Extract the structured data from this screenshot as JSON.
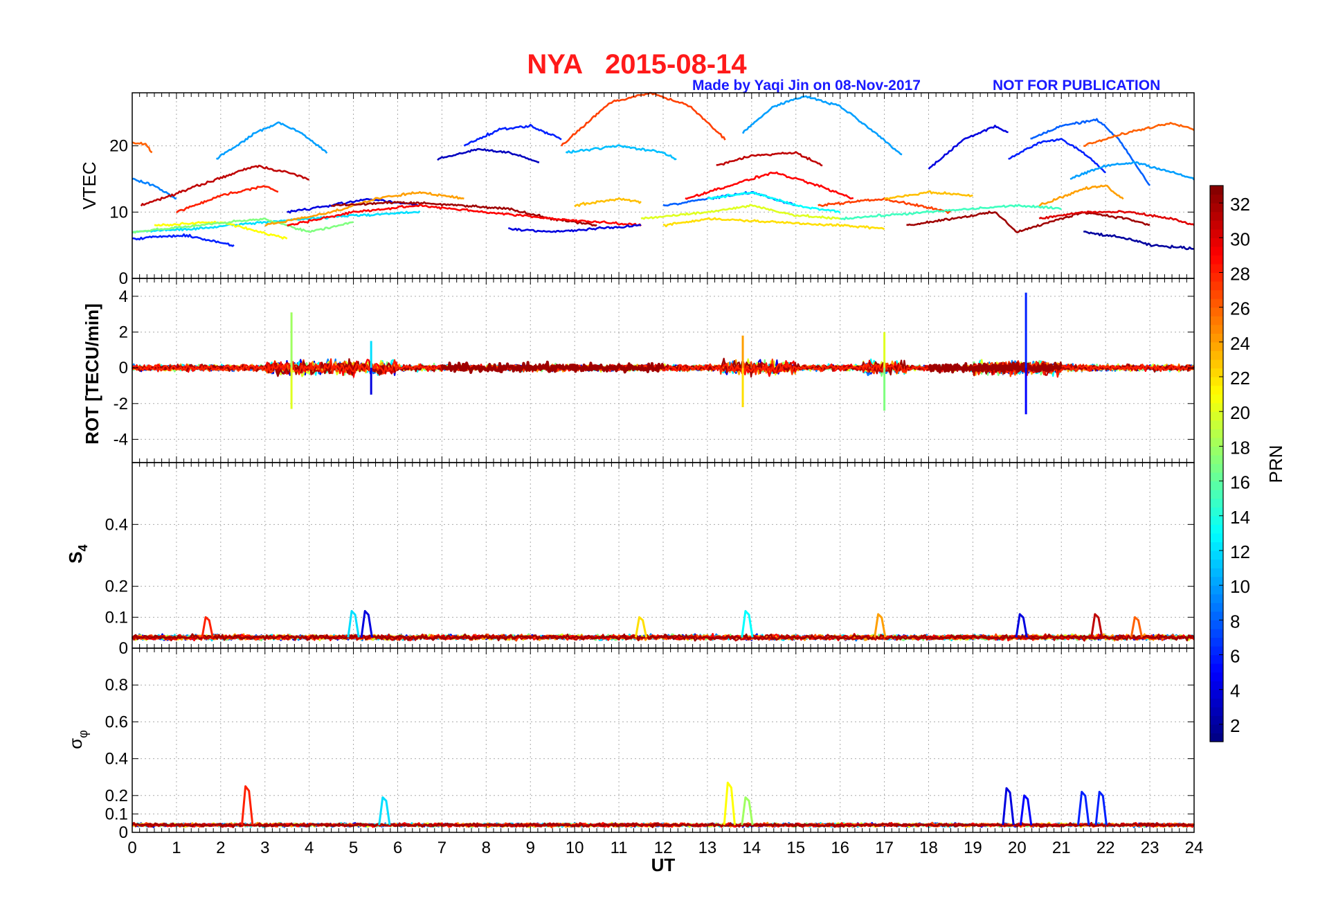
{
  "header": {
    "title": "NYA   2015-08-14",
    "credit": "Made by Yaqi Jin on 08-Nov-2017",
    "notice": "NOT FOR PUBLICATION",
    "title_color": "#ff1a1a",
    "credit_color": "#1a1aff"
  },
  "chart_data": [
    {
      "type": "line",
      "panel": "vtec",
      "ylabel": "VTEC",
      "xlim": [
        0,
        24
      ],
      "ylim": [
        0,
        28
      ],
      "yticks": [
        0,
        10,
        20
      ],
      "grid": true,
      "series": [
        {
          "prn": 9,
          "x": [
            0,
            0.5,
            1.0
          ],
          "y": [
            15,
            14,
            12
          ]
        },
        {
          "prn": 26,
          "x": [
            0,
            0.3,
            0.45
          ],
          "y": [
            20.5,
            20.2,
            19
          ]
        },
        {
          "prn": 31,
          "x": [
            0.2,
            1.5,
            2.8,
            3.5,
            4.0
          ],
          "y": [
            11,
            14,
            17,
            16,
            15
          ]
        },
        {
          "prn": 28,
          "x": [
            1.0,
            2.0,
            3.0,
            3.3
          ],
          "y": [
            10,
            12.5,
            14,
            13
          ]
        },
        {
          "prn": 10,
          "x": [
            1.9,
            2.8,
            3.3,
            3.8,
            4.4
          ],
          "y": [
            18,
            22,
            23.5,
            22,
            19
          ]
        },
        {
          "prn": 6,
          "x": [
            0,
            1.2,
            2.3
          ],
          "y": [
            6,
            6.5,
            5
          ]
        },
        {
          "prn": 12,
          "x": [
            0,
            1.5,
            3.0,
            4.0,
            5.0,
            6.5
          ],
          "y": [
            7,
            7.5,
            8.5,
            9,
            9.5,
            10
          ]
        },
        {
          "prn": 21,
          "x": [
            0.5,
            2.0,
            3.5
          ],
          "y": [
            8,
            8.5,
            6
          ]
        },
        {
          "prn": 17,
          "x": [
            0,
            1.5,
            3.0,
            4.0,
            5.0
          ],
          "y": [
            7,
            8,
            9,
            7,
            8.5
          ]
        },
        {
          "prn": 4,
          "x": [
            3.5,
            4.5,
            5.3,
            6.5
          ],
          "y": [
            10,
            11,
            12,
            11
          ]
        },
        {
          "prn": 24,
          "x": [
            3.0,
            4.5,
            5.5,
            6.5,
            7.5
          ],
          "y": [
            8,
            10,
            12,
            13,
            12
          ]
        },
        {
          "prn": 32,
          "x": [
            4.5,
            6.0,
            7.5,
            8.5,
            9.5,
            10.5
          ],
          "y": [
            11,
            11.5,
            11,
            10.5,
            9,
            8
          ]
        },
        {
          "prn": 29,
          "x": [
            3.5,
            5.0,
            6.5,
            8.0,
            9.5,
            11.5
          ],
          "y": [
            8,
            10,
            11,
            10,
            9,
            8
          ]
        },
        {
          "prn": 3,
          "x": [
            6.9,
            7.8,
            8.5,
            9.2
          ],
          "y": [
            18,
            19.5,
            19,
            17.5
          ]
        },
        {
          "prn": 6,
          "x": [
            7.5,
            8.3,
            9.0,
            9.7
          ],
          "y": [
            20,
            22.5,
            23,
            21
          ]
        },
        {
          "prn": 11,
          "x": [
            9.8,
            11.0,
            12.0,
            12.3
          ],
          "y": [
            19,
            20,
            19,
            18
          ]
        },
        {
          "prn": 27,
          "x": [
            9.7,
            10.8,
            11.7,
            12.6,
            13.4
          ],
          "y": [
            20,
            26.5,
            28,
            26,
            21
          ]
        },
        {
          "prn": 4,
          "x": [
            8.5,
            9.5,
            10.5,
            11.5
          ],
          "y": [
            7.5,
            7,
            7.5,
            8
          ]
        },
        {
          "prn": 23,
          "x": [
            10.0,
            11.0,
            11.5
          ],
          "y": [
            11,
            12,
            11.5
          ]
        },
        {
          "prn": 8,
          "x": [
            12.0,
            13.0,
            14.0,
            15.0
          ],
          "y": [
            11,
            12,
            13,
            11
          ]
        },
        {
          "prn": 31,
          "x": [
            13.2,
            14.0,
            15.0,
            15.6
          ],
          "y": [
            17,
            18.5,
            19,
            17
          ]
        },
        {
          "prn": 29,
          "x": [
            12.5,
            13.5,
            14.5,
            15.5,
            16.3
          ],
          "y": [
            12,
            14,
            16,
            14,
            12
          ]
        },
        {
          "prn": 10,
          "x": [
            13.8,
            14.5,
            15.2,
            16.0,
            16.8,
            17.4
          ],
          "y": [
            22,
            26,
            27.5,
            26,
            22,
            18.5
          ]
        },
        {
          "prn": 20,
          "x": [
            11.5,
            13.0,
            14.0,
            15.0,
            16.0
          ],
          "y": [
            9,
            10,
            11,
            9.5,
            9
          ]
        },
        {
          "prn": 13,
          "x": [
            13.0,
            14.0,
            15.0,
            16.0
          ],
          "y": [
            12,
            13,
            11,
            10
          ]
        },
        {
          "prn": 22,
          "x": [
            12.0,
            13.0,
            14.5,
            16.0,
            17.0
          ],
          "y": [
            8,
            9,
            8.5,
            8,
            7.5
          ]
        },
        {
          "prn": 27,
          "x": [
            15.5,
            17.0,
            18.5
          ],
          "y": [
            11,
            12,
            10
          ]
        },
        {
          "prn": 23,
          "x": [
            17.0,
            18.0,
            19.0
          ],
          "y": [
            12,
            13,
            12.5
          ]
        },
        {
          "prn": 4,
          "x": [
            18.0,
            18.8,
            19.5,
            19.8
          ],
          "y": [
            16.5,
            21,
            23,
            22
          ]
        },
        {
          "prn": 6,
          "x": [
            19.8,
            20.5,
            21.0,
            21.5,
            22.0
          ],
          "y": [
            18,
            20.5,
            21,
            19,
            16
          ]
        },
        {
          "prn": 8,
          "x": [
            20.3,
            21.0,
            21.8,
            22.3,
            23.0
          ],
          "y": [
            21,
            23,
            24,
            21,
            14
          ]
        },
        {
          "prn": 10,
          "x": [
            21.2,
            22.0,
            22.7,
            23.5,
            24.0
          ],
          "y": [
            15,
            17,
            17.5,
            16,
            15
          ]
        },
        {
          "prn": 26,
          "x": [
            21.5,
            22.5,
            23.5,
            24.0
          ],
          "y": [
            20,
            22,
            23.5,
            22.5
          ]
        },
        {
          "prn": 24,
          "x": [
            20.5,
            21.5,
            22.0,
            22.4
          ],
          "y": [
            11,
            13.5,
            14,
            12
          ]
        },
        {
          "prn": 32,
          "x": [
            17.5,
            18.5,
            19.5,
            20.0,
            20.5,
            21.5,
            22.5,
            23.0
          ],
          "y": [
            8,
            9,
            10,
            7,
            8,
            10,
            9,
            8
          ]
        },
        {
          "prn": 30,
          "x": [
            20.5,
            21.5,
            22.5,
            23.5,
            24.0
          ],
          "y": [
            9,
            10,
            10,
            9,
            8
          ]
        },
        {
          "prn": 2,
          "x": [
            21.5,
            22.5,
            23.0,
            24.0
          ],
          "y": [
            7,
            6,
            5,
            4.5
          ]
        },
        {
          "prn": 15,
          "x": [
            16.0,
            18.0,
            20.0,
            21.0
          ],
          "y": [
            9,
            10,
            11,
            10.5
          ]
        }
      ]
    },
    {
      "type": "line",
      "panel": "rot",
      "ylabel": "ROT [TECU/min]",
      "xlim": [
        0,
        24
      ],
      "ylim": [
        -5.3,
        5.0
      ],
      "yticks": [
        -4,
        -2,
        0,
        2,
        4
      ],
      "grid": true,
      "spikes": [
        {
          "prn": 18,
          "x": 3.6,
          "y": 3.1
        },
        {
          "prn": 20,
          "x": 3.6,
          "y": -2.3
        },
        {
          "prn": 4,
          "x": 5.4,
          "y": -1.5
        },
        {
          "prn": 12,
          "x": 5.4,
          "y": 1.5
        },
        {
          "prn": 22,
          "x": 13.8,
          "y": -2.2
        },
        {
          "prn": 24,
          "x": 13.8,
          "y": 1.8
        },
        {
          "prn": 17,
          "x": 17.0,
          "y": -2.4
        },
        {
          "prn": 20,
          "x": 17.0,
          "y": 2.0
        },
        {
          "prn": 6,
          "x": 20.2,
          "y": 4.2
        },
        {
          "prn": 5,
          "x": 20.2,
          "y": -2.6
        }
      ]
    },
    {
      "type": "line",
      "panel": "s4",
      "ylabel": "S4",
      "xlim": [
        0,
        24
      ],
      "ylim": [
        0,
        0.6
      ],
      "yticks": [
        0,
        0.1,
        0.2,
        0.4
      ],
      "grid": true,
      "peaks": [
        {
          "prn": 28,
          "x": 1.7,
          "y": 0.1
        },
        {
          "prn": 12,
          "x": 5.0,
          "y": 0.12
        },
        {
          "prn": 4,
          "x": 5.3,
          "y": 0.12
        },
        {
          "prn": 22,
          "x": 11.5,
          "y": 0.1
        },
        {
          "prn": 13,
          "x": 13.9,
          "y": 0.12
        },
        {
          "prn": 24,
          "x": 16.9,
          "y": 0.11
        },
        {
          "prn": 4,
          "x": 20.1,
          "y": 0.11
        },
        {
          "prn": 31,
          "x": 21.8,
          "y": 0.11
        },
        {
          "prn": 26,
          "x": 22.7,
          "y": 0.1
        }
      ]
    },
    {
      "type": "line",
      "panel": "sigma",
      "ylabel": "σφ",
      "xlim": [
        0,
        24
      ],
      "ylim": [
        0,
        1.0
      ],
      "yticks": [
        0,
        0.1,
        0.2,
        0.4,
        0.6,
        0.8
      ],
      "xticks": [
        0,
        1,
        2,
        3,
        4,
        5,
        6,
        7,
        8,
        9,
        10,
        11,
        12,
        13,
        14,
        15,
        16,
        17,
        18,
        19,
        20,
        21,
        22,
        23,
        24
      ],
      "xlabel": "UT",
      "grid": true,
      "peaks": [
        {
          "prn": 28,
          "x": 2.6,
          "y": 0.25
        },
        {
          "prn": 12,
          "x": 5.7,
          "y": 0.19
        },
        {
          "prn": 21,
          "x": 13.5,
          "y": 0.27
        },
        {
          "prn": 18,
          "x": 13.9,
          "y": 0.19
        },
        {
          "prn": 4,
          "x": 19.8,
          "y": 0.24
        },
        {
          "prn": 5,
          "x": 20.2,
          "y": 0.2
        },
        {
          "prn": 6,
          "x": 21.5,
          "y": 0.22
        },
        {
          "prn": 6,
          "x": 21.9,
          "y": 0.22
        }
      ]
    }
  ],
  "colorbar": {
    "label": "PRN",
    "min": 1,
    "max": 33,
    "ticks": [
      2,
      4,
      6,
      8,
      10,
      12,
      14,
      16,
      18,
      20,
      22,
      24,
      26,
      28,
      30,
      32
    ]
  }
}
